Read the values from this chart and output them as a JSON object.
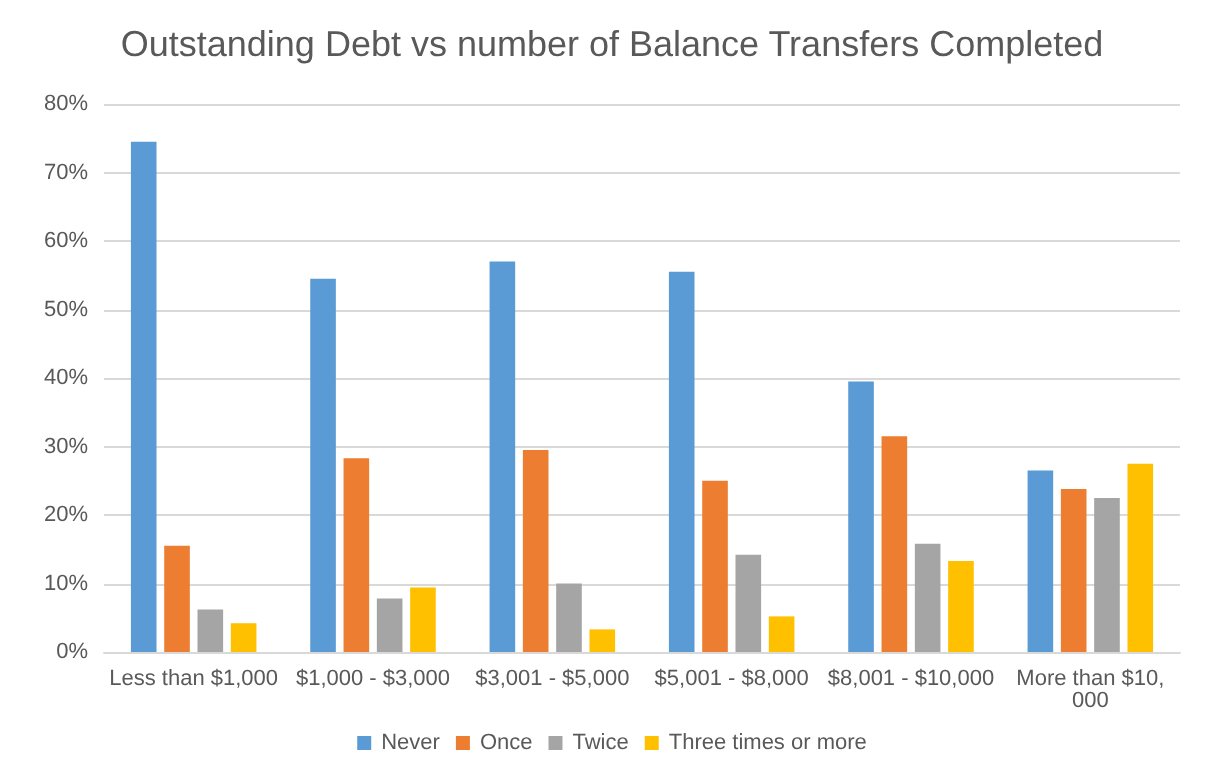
{
  "chart_data": {
    "type": "bar",
    "title": "Outstanding Debt vs number of Balance Transfers Completed",
    "categories": [
      "Less than $1,000",
      "$1,000 - $3,000",
      "$3,001 - $5,000",
      "$5,001 - $8,000",
      "$8,001 - $10,000",
      "More than $10,000"
    ],
    "series": [
      {
        "name": "Never",
        "color": "#5b9bd5",
        "values": [
          74.5,
          54.5,
          57,
          55.5,
          39.5,
          26.5
        ]
      },
      {
        "name": "Once",
        "color": "#ed7d31",
        "values": [
          15.5,
          28.3,
          29.5,
          25,
          31.5,
          23.8
        ]
      },
      {
        "name": "Twice",
        "color": "#a5a5a5",
        "values": [
          6.2,
          7.8,
          10,
          14.2,
          15.8,
          22.5
        ]
      },
      {
        "name": "Three times or more",
        "color": "#ffc000",
        "values": [
          4.2,
          9.4,
          3.3,
          5.2,
          13.3,
          27.5
        ]
      }
    ],
    "ylim": [
      0,
      80
    ],
    "yticks": [
      {
        "value": 0,
        "label": "0%"
      },
      {
        "value": 10,
        "label": "10%"
      },
      {
        "value": 20,
        "label": "20%"
      },
      {
        "value": 30,
        "label": "30%"
      },
      {
        "value": 40,
        "label": "40%"
      },
      {
        "value": 50,
        "label": "50%"
      },
      {
        "value": 60,
        "label": "60%"
      },
      {
        "value": 70,
        "label": "70%"
      },
      {
        "value": 80,
        "label": "80%"
      }
    ],
    "grid": "y",
    "legend": "bottom"
  }
}
